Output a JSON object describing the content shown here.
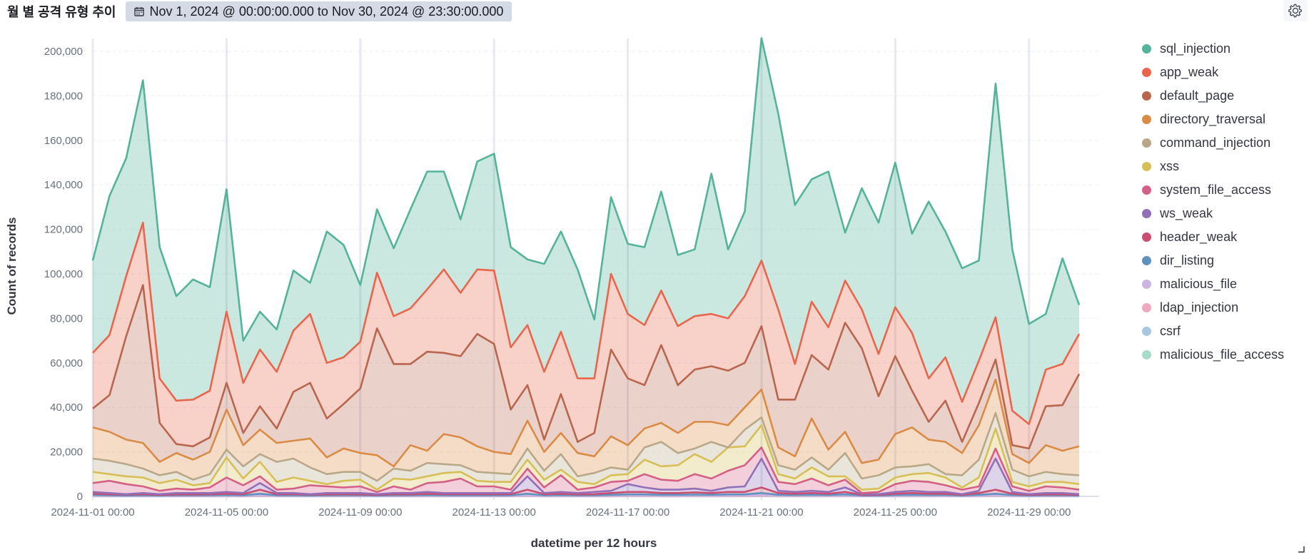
{
  "panel": {
    "title": "월 별 공격 유형 추이",
    "time_range": "Nov 1, 2024 @ 00:00:00.000 to Nov 30, 2024 @ 23:30:00.000",
    "calendar_icon": "calendar-icon",
    "settings_icon": "gear-icon"
  },
  "chart_data": {
    "type": "area",
    "stacked": true,
    "ylabel": "Count of records",
    "xlabel": "datetime per 12 hours",
    "ylim": [
      0,
      200000
    ],
    "yticks": [
      0,
      20000,
      40000,
      60000,
      80000,
      100000,
      120000,
      140000,
      160000,
      180000,
      200000
    ],
    "ytick_labels": [
      "0",
      "20,000",
      "40,000",
      "60,000",
      "80,000",
      "100,000",
      "120,000",
      "140,000",
      "160,000",
      "180,000",
      "200,000"
    ],
    "xticks": [
      {
        "label": "2024-11-01 00:00",
        "index": 0
      },
      {
        "label": "2024-11-05 00:00",
        "index": 8
      },
      {
        "label": "2024-11-09 00:00",
        "index": 16
      },
      {
        "label": "2024-11-13 00:00",
        "index": 24
      },
      {
        "label": "2024-11-17 00:00",
        "index": 32
      },
      {
        "label": "2024-11-21 00:00",
        "index": 40
      },
      {
        "label": "2024-11-25 00:00",
        "index": 48
      },
      {
        "label": "2024-11-29 00:00",
        "index": 56
      }
    ],
    "x": [
      "2024-11-01 00:00",
      "2024-11-01 12:00",
      "2024-11-02 00:00",
      "2024-11-02 12:00",
      "2024-11-03 00:00",
      "2024-11-03 12:00",
      "2024-11-04 00:00",
      "2024-11-04 12:00",
      "2024-11-05 00:00",
      "2024-11-05 12:00",
      "2024-11-06 00:00",
      "2024-11-06 12:00",
      "2024-11-07 00:00",
      "2024-11-07 12:00",
      "2024-11-08 00:00",
      "2024-11-08 12:00",
      "2024-11-09 00:00",
      "2024-11-09 12:00",
      "2024-11-10 00:00",
      "2024-11-10 12:00",
      "2024-11-11 00:00",
      "2024-11-11 12:00",
      "2024-11-12 00:00",
      "2024-11-12 12:00",
      "2024-11-13 00:00",
      "2024-11-13 12:00",
      "2024-11-14 00:00",
      "2024-11-14 12:00",
      "2024-11-15 00:00",
      "2024-11-15 12:00",
      "2024-11-16 00:00",
      "2024-11-16 12:00",
      "2024-11-17 00:00",
      "2024-11-17 12:00",
      "2024-11-18 00:00",
      "2024-11-18 12:00",
      "2024-11-19 00:00",
      "2024-11-19 12:00",
      "2024-11-20 00:00",
      "2024-11-20 12:00",
      "2024-11-21 00:00",
      "2024-11-21 12:00",
      "2024-11-22 00:00",
      "2024-11-22 12:00",
      "2024-11-23 00:00",
      "2024-11-23 12:00",
      "2024-11-24 00:00",
      "2024-11-24 12:00",
      "2024-11-25 00:00",
      "2024-11-25 12:00",
      "2024-11-26 00:00",
      "2024-11-26 12:00",
      "2024-11-27 00:00",
      "2024-11-27 12:00",
      "2024-11-28 00:00",
      "2024-11-28 12:00",
      "2024-11-29 00:00",
      "2024-11-29 12:00",
      "2024-11-30 00:00",
      "2024-11-30 12:00"
    ],
    "stacked_totals": {
      "sql_injection": [
        106000,
        135000,
        152000,
        187000,
        112000,
        90000,
        97500,
        94000,
        138000,
        70000,
        83000,
        75000,
        101500,
        96000,
        119000,
        113000,
        95000,
        129000,
        111500,
        129000,
        146000,
        146000,
        124500,
        150500,
        154000,
        112000,
        106500,
        104500,
        119000,
        102000,
        79500,
        134500,
        113500,
        112000,
        137000,
        108500,
        111000,
        145000,
        111000,
        128000,
        206000,
        172000,
        131000,
        142500,
        146000,
        118500,
        138500,
        123000,
        150000,
        118000,
        132500,
        119000,
        102500,
        106000,
        185500,
        111000,
        77500,
        82000,
        107000,
        86000
      ],
      "app_weak": [
        64500,
        72500,
        99000,
        123000,
        53000,
        43000,
        43500,
        47500,
        83000,
        51000,
        66000,
        56000,
        74500,
        82000,
        60000,
        62500,
        69500,
        100500,
        81000,
        84500,
        93000,
        102000,
        91500,
        102000,
        101500,
        67000,
        77000,
        56000,
        74000,
        53000,
        53000,
        100000,
        82000,
        77000,
        92500,
        76500,
        81000,
        82000,
        80000,
        90000,
        106000,
        84000,
        59500,
        87500,
        76000,
        97000,
        84000,
        64000,
        85000,
        73500,
        53000,
        62500,
        42500,
        61000,
        80500,
        38500,
        32500,
        57000,
        59500,
        73000
      ],
      "default_page": [
        39500,
        45500,
        72000,
        95000,
        33000,
        23500,
        22500,
        26500,
        51000,
        28500,
        40500,
        30500,
        47000,
        51000,
        35000,
        41500,
        48500,
        75500,
        59500,
        59500,
        65000,
        64500,
        63000,
        73000,
        68500,
        39000,
        50000,
        25500,
        46000,
        24500,
        28500,
        66000,
        53000,
        50000,
        68000,
        50000,
        57000,
        58500,
        56500,
        60000,
        76500,
        43500,
        43500,
        63500,
        57000,
        78000,
        66500,
        45000,
        63000,
        47500,
        33500,
        43000,
        24500,
        42000,
        61500,
        23000,
        21500,
        40500,
        41000,
        55000
      ],
      "directory_traversal": [
        31000,
        29000,
        25500,
        24000,
        15500,
        19500,
        16500,
        20000,
        39000,
        23000,
        30000,
        24000,
        25000,
        26000,
        17500,
        21500,
        19500,
        18500,
        13500,
        23000,
        20500,
        28000,
        26500,
        22500,
        20000,
        19000,
        34000,
        20000,
        28500,
        19500,
        18000,
        27000,
        23000,
        30500,
        33000,
        28500,
        33500,
        33500,
        32000,
        40000,
        48000,
        22000,
        18000,
        35000,
        21000,
        29000,
        15000,
        16500,
        28000,
        31000,
        25500,
        24500,
        19500,
        32000,
        52500,
        19000,
        15000,
        23000,
        20500,
        22500
      ],
      "command_injection": [
        17000,
        16000,
        14500,
        12500,
        9500,
        11000,
        7500,
        10000,
        21000,
        13500,
        19000,
        15500,
        17000,
        13000,
        10000,
        11000,
        11000,
        7000,
        12500,
        11500,
        15000,
        14500,
        14000,
        11000,
        10500,
        10000,
        21500,
        11500,
        19000,
        9000,
        10500,
        13000,
        12000,
        22000,
        24500,
        19500,
        21500,
        24500,
        22000,
        30000,
        35500,
        14000,
        12000,
        17500,
        12000,
        19500,
        8000,
        9500,
        13000,
        13500,
        14500,
        10000,
        9500,
        16500,
        37500,
        12000,
        9000,
        11000,
        10000,
        9500
      ],
      "xss": [
        11000,
        10000,
        9000,
        8500,
        6000,
        7500,
        5000,
        6000,
        17500,
        8000,
        15500,
        6500,
        8500,
        7000,
        5500,
        7000,
        7500,
        3000,
        8000,
        7500,
        9000,
        10500,
        11000,
        7000,
        6500,
        6500,
        16500,
        7500,
        12000,
        6500,
        5500,
        9500,
        10000,
        16500,
        13500,
        14000,
        19000,
        15500,
        22000,
        22500,
        32000,
        10000,
        8000,
        13000,
        9000,
        9000,
        3000,
        3500,
        8500,
        10000,
        10500,
        8500,
        4000,
        8500,
        30500,
        6500,
        4500,
        6500,
        6500,
        5500
      ],
      "system_file_access": [
        6000,
        7000,
        5500,
        4500,
        2500,
        3500,
        3000,
        4000,
        8500,
        5000,
        9000,
        3000,
        3500,
        5000,
        4500,
        4000,
        4500,
        2000,
        4500,
        3000,
        6000,
        6500,
        8000,
        4500,
        4500,
        3000,
        12500,
        4000,
        9500,
        3000,
        4000,
        6500,
        7000,
        10000,
        7500,
        7000,
        10000,
        8000,
        11500,
        14000,
        22000,
        6500,
        5500,
        8000,
        5000,
        7500,
        1500,
        2000,
        5500,
        7000,
        6500,
        5000,
        3000,
        4500,
        21500,
        4500,
        2500,
        4500,
        4000,
        3000
      ],
      "ws_weak": [
        2000,
        1500,
        1000,
        1500,
        1000,
        1500,
        1500,
        1500,
        2000,
        1500,
        6000,
        1500,
        1500,
        1000,
        1500,
        1500,
        1500,
        1000,
        1500,
        1500,
        2000,
        1500,
        1500,
        1500,
        1500,
        1500,
        9000,
        1500,
        2000,
        1500,
        2000,
        2500,
        5500,
        4000,
        3000,
        3000,
        3500,
        2500,
        4000,
        4500,
        17000,
        2500,
        2000,
        2500,
        2000,
        4000,
        1000,
        1000,
        2000,
        2500,
        2000,
        2000,
        1000,
        2500,
        17000,
        2000,
        1000,
        1500,
        1500,
        1000
      ],
      "header_weak": [
        1200,
        1000,
        800,
        1000,
        700,
        900,
        900,
        1000,
        1200,
        1000,
        3000,
        1000,
        1000,
        800,
        900,
        1000,
        900,
        700,
        1000,
        900,
        1200,
        1000,
        1000,
        1000,
        1000,
        1000,
        3000,
        1000,
        1200,
        900,
        1000,
        1500,
        2000,
        2000,
        1500,
        1500,
        1800,
        1500,
        2000,
        2000,
        4000,
        1500,
        1200,
        1500,
        1200,
        2000,
        700,
        700,
        1200,
        1500,
        1200,
        1200,
        700,
        1500,
        3000,
        1200,
        700,
        900,
        900,
        700
      ],
      "dir_listing": [
        600,
        500,
        400,
        500,
        400,
        500,
        500,
        500,
        600,
        500,
        1200,
        500,
        500,
        400,
        500,
        500,
        500,
        400,
        500,
        500,
        600,
        500,
        500,
        500,
        500,
        500,
        1200,
        500,
        600,
        500,
        500,
        700,
        900,
        900,
        700,
        700,
        800,
        700,
        900,
        900,
        1500,
        700,
        600,
        700,
        600,
        900,
        400,
        400,
        600,
        700,
        600,
        600,
        400,
        700,
        1200,
        600,
        400,
        500,
        500,
        400
      ],
      "malicious_file": [
        300,
        250,
        200,
        250,
        200,
        250,
        250,
        250,
        300,
        250,
        500,
        250,
        250,
        200,
        250,
        250,
        250,
        200,
        250,
        250,
        300,
        250,
        250,
        250,
        250,
        250,
        500,
        250,
        300,
        250,
        250,
        350,
        400,
        400,
        350,
        350,
        400,
        350,
        400,
        400,
        600,
        350,
        300,
        350,
        300,
        400,
        200,
        200,
        300,
        350,
        300,
        300,
        200,
        350,
        500,
        300,
        200,
        250,
        250,
        200
      ],
      "ldap_injection": [
        150,
        120,
        100,
        120,
        100,
        120,
        120,
        120,
        150,
        120,
        250,
        120,
        120,
        100,
        120,
        120,
        120,
        100,
        120,
        120,
        150,
        120,
        120,
        120,
        120,
        120,
        250,
        120,
        150,
        120,
        120,
        170,
        200,
        200,
        170,
        170,
        200,
        170,
        200,
        200,
        300,
        170,
        150,
        170,
        150,
        200,
        100,
        100,
        150,
        170,
        150,
        150,
        100,
        170,
        250,
        150,
        100,
        120,
        120,
        100
      ],
      "csrf": [
        70,
        60,
        50,
        60,
        50,
        60,
        60,
        60,
        70,
        60,
        120,
        60,
        60,
        50,
        60,
        60,
        60,
        50,
        60,
        60,
        70,
        60,
        60,
        60,
        60,
        60,
        120,
        60,
        70,
        60,
        60,
        80,
        100,
        100,
        80,
        80,
        100,
        80,
        100,
        100,
        150,
        80,
        70,
        80,
        70,
        100,
        50,
        50,
        70,
        80,
        70,
        70,
        50,
        80,
        120,
        70,
        50,
        60,
        60,
        50
      ],
      "malicious_file_access": [
        30,
        25,
        20,
        25,
        20,
        25,
        25,
        25,
        30,
        25,
        50,
        25,
        25,
        20,
        25,
        25,
        25,
        20,
        25,
        25,
        30,
        25,
        25,
        25,
        25,
        25,
        50,
        25,
        30,
        25,
        25,
        35,
        40,
        40,
        35,
        35,
        40,
        35,
        40,
        40,
        60,
        35,
        30,
        35,
        30,
        40,
        20,
        20,
        30,
        35,
        30,
        30,
        20,
        35,
        50,
        30,
        20,
        25,
        25,
        20
      ]
    },
    "series": [
      {
        "name": "sql_injection",
        "color": "#54b399"
      },
      {
        "name": "app_weak",
        "color": "#e7664c"
      },
      {
        "name": "default_page",
        "color": "#b9664f"
      },
      {
        "name": "directory_traversal",
        "color": "#da8b45"
      },
      {
        "name": "command_injection",
        "color": "#b9a888"
      },
      {
        "name": "xss",
        "color": "#d6bf57"
      },
      {
        "name": "system_file_access",
        "color": "#d36086"
      },
      {
        "name": "ws_weak",
        "color": "#9170b8"
      },
      {
        "name": "header_weak",
        "color": "#ca4d72"
      },
      {
        "name": "dir_listing",
        "color": "#6092c0"
      },
      {
        "name": "malicious_file",
        "color": "#cbb6e1"
      },
      {
        "name": "ldap_injection",
        "color": "#efa8c0"
      },
      {
        "name": "csrf",
        "color": "#a8c7e0"
      },
      {
        "name": "malicious_file_access",
        "color": "#a8dbc9"
      }
    ],
    "legend_position": "right",
    "grid": true
  }
}
